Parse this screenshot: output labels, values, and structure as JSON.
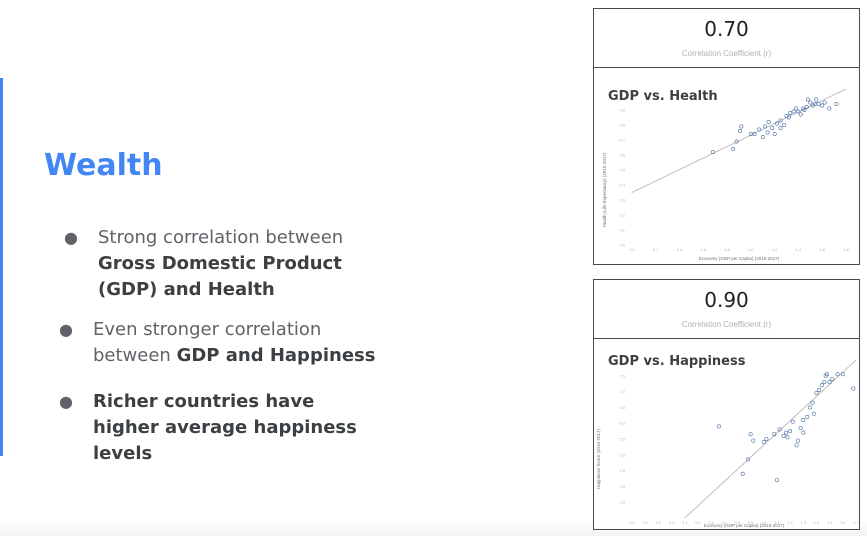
{
  "slide": {
    "title": "Wealth",
    "bullets": [
      {
        "parts": [
          {
            "text": "Strong correlation between ",
            "bold": false
          },
          {
            "text": "Gross Domestic Product (GDP) and Health",
            "bold": true
          }
        ]
      },
      {
        "parts": [
          {
            "text": "Even stronger correlation between ",
            "bold": false
          },
          {
            "text": "GDP and Happiness",
            "bold": true
          }
        ]
      },
      {
        "parts": [
          {
            "text": "Richer countries have higher average happiness levels",
            "bold": true
          }
        ]
      }
    ]
  },
  "colors": {
    "accent": "#4285f4",
    "point": "#4a6fa5",
    "fit_line": "#b0b0b0"
  },
  "chart_data": [
    {
      "type": "scatter",
      "coefficient": "0.70",
      "coefficient_label": "Correlation Coefficient (r)",
      "title": "GDP vs. Health",
      "xlabel": "Economy (GDP per Capita) (2015-2017)",
      "ylabel": "Health (Life Expectancy) (2015-2017)",
      "xlim": [
        0.0,
        1.8
      ],
      "ylim": [
        0.0,
        1.0
      ],
      "xticks": [
        "0.0",
        "0.2",
        "0.4",
        "0.6",
        "0.8",
        "1.0",
        "1.2",
        "1.4",
        "1.6",
        "1.8"
      ],
      "yticks": [
        "0.0",
        "0.1",
        "0.2",
        "0.3",
        "0.4",
        "0.5",
        "0.6",
        "0.7",
        "0.8",
        "0.9"
      ],
      "fit": {
        "x0": 0.0,
        "y0": 0.35,
        "x1": 1.8,
        "y1": 1.04
      },
      "points": [
        [
          0.68,
          0.62
        ],
        [
          0.85,
          0.64
        ],
        [
          0.88,
          0.69
        ],
        [
          0.91,
          0.76
        ],
        [
          0.92,
          0.79
        ],
        [
          1.0,
          0.74
        ],
        [
          1.03,
          0.74
        ],
        [
          1.07,
          0.77
        ],
        [
          1.1,
          0.72
        ],
        [
          1.12,
          0.79
        ],
        [
          1.14,
          0.75
        ],
        [
          1.15,
          0.82
        ],
        [
          1.18,
          0.78
        ],
        [
          1.2,
          0.74
        ],
        [
          1.22,
          0.81
        ],
        [
          1.25,
          0.78
        ],
        [
          1.25,
          0.83
        ],
        [
          1.28,
          0.8
        ],
        [
          1.3,
          0.86
        ],
        [
          1.33,
          0.88
        ],
        [
          1.36,
          0.89
        ],
        [
          1.38,
          0.91
        ],
        [
          1.4,
          0.89
        ],
        [
          1.42,
          0.87
        ],
        [
          1.45,
          0.9
        ],
        [
          1.48,
          0.97
        ],
        [
          1.5,
          0.95
        ],
        [
          1.52,
          0.93
        ],
        [
          1.54,
          0.94
        ],
        [
          1.55,
          0.97
        ],
        [
          1.57,
          0.94
        ],
        [
          1.6,
          0.93
        ],
        [
          1.62,
          0.95
        ],
        [
          1.66,
          0.91
        ],
        [
          1.72,
          0.94
        ],
        [
          1.32,
          0.85
        ],
        [
          1.44,
          0.91
        ],
        [
          1.47,
          0.92
        ]
      ]
    },
    {
      "type": "scatter",
      "coefficient": "0.90",
      "coefficient_label": "Correlation Coefficient (r)",
      "title": "GDP vs. Happiness",
      "xlabel": "Economy (GDP per Capita) (2015-2017)",
      "ylabel": "Happiness Score (2015-2017)",
      "xlim": [
        0.0,
        1.7
      ],
      "ylim": [
        3.0,
        8.0
      ],
      "xticks": [
        "0.0",
        "0.1",
        "0.2",
        "0.3",
        "0.4",
        "0.5",
        "0.6",
        "0.7",
        "0.8",
        "0.9",
        "1.0",
        "1.1",
        "1.2",
        "1.3",
        "1.4",
        "1.5",
        "1.6",
        "1.7"
      ],
      "yticks": [
        "3.5",
        "4.0",
        "4.5",
        "5.0",
        "5.5",
        "6.0",
        "6.5",
        "7.0",
        "7.5"
      ],
      "fit": {
        "x0": 0.4,
        "y0": 3.0,
        "x1": 1.7,
        "y1": 8.0
      },
      "points": [
        [
          0.66,
          5.9
        ],
        [
          0.84,
          4.4
        ],
        [
          0.88,
          4.85
        ],
        [
          0.9,
          5.65
        ],
        [
          0.92,
          5.45
        ],
        [
          1.0,
          5.4
        ],
        [
          1.02,
          5.5
        ],
        [
          1.08,
          5.65
        ],
        [
          1.1,
          4.2
        ],
        [
          1.12,
          5.8
        ],
        [
          1.15,
          5.6
        ],
        [
          1.17,
          5.7
        ],
        [
          1.2,
          5.75
        ],
        [
          1.22,
          6.05
        ],
        [
          1.25,
          5.3
        ],
        [
          1.26,
          5.45
        ],
        [
          1.28,
          5.85
        ],
        [
          1.3,
          6.1
        ],
        [
          1.33,
          6.2
        ],
        [
          1.35,
          6.5
        ],
        [
          1.37,
          6.65
        ],
        [
          1.38,
          6.3
        ],
        [
          1.4,
          6.95
        ],
        [
          1.42,
          7.05
        ],
        [
          1.44,
          7.2
        ],
        [
          1.46,
          7.3
        ],
        [
          1.47,
          7.5
        ],
        [
          1.48,
          7.55
        ],
        [
          1.5,
          7.3
        ],
        [
          1.52,
          7.4
        ],
        [
          1.56,
          7.55
        ],
        [
          1.6,
          7.55
        ],
        [
          1.68,
          7.1
        ],
        [
          1.3,
          5.7
        ],
        [
          1.18,
          5.55
        ]
      ]
    }
  ]
}
